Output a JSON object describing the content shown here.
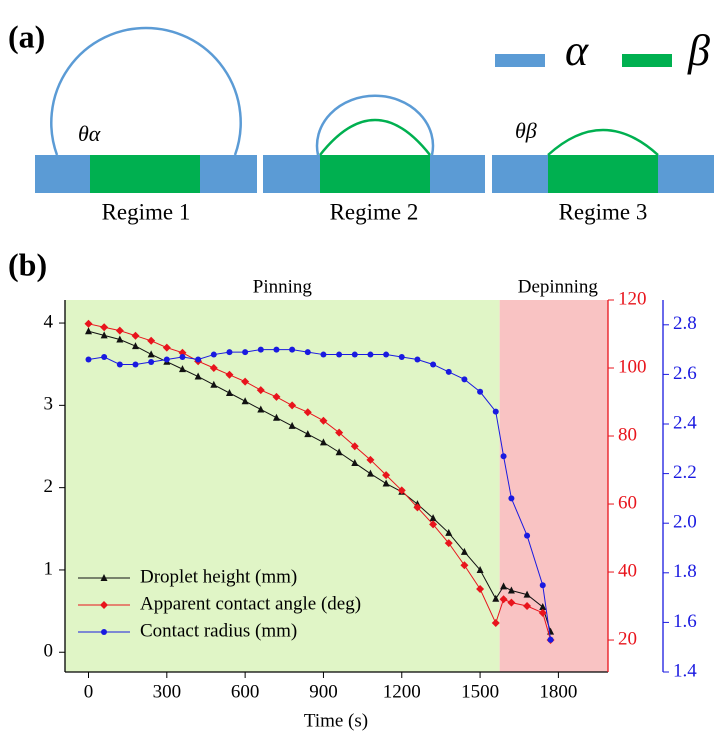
{
  "panel_a": {
    "label": "(a)",
    "legend": [
      "α",
      "β"
    ],
    "angle_labels": [
      "θα",
      "θβ"
    ],
    "regimes": [
      "Regime 1",
      "Regime 2",
      "Regime 3"
    ]
  },
  "chart_data": {
    "type": "line",
    "panel_label": "(b)",
    "x_label": "Time (s)",
    "regions": [
      {
        "label": "Pinning",
        "x0": -90,
        "x1": 1575,
        "color": "#e0f5c6"
      },
      {
        "label": "Depinning",
        "x0": 1575,
        "x1": 1990,
        "color": "#f9c3c3"
      }
    ],
    "x": [
      0,
      60,
      120,
      180,
      240,
      300,
      360,
      420,
      480,
      540,
      600,
      660,
      720,
      780,
      840,
      900,
      960,
      1020,
      1080,
      1140,
      1200,
      1260,
      1320,
      1380,
      1440,
      1500,
      1560,
      1590,
      1620,
      1680,
      1740,
      1770
    ],
    "series": [
      {
        "name": "Droplet height (mm)",
        "color": "#111111",
        "marker": "triangle",
        "axis": "y",
        "values": [
          3.9,
          3.85,
          3.8,
          3.72,
          3.62,
          3.53,
          3.44,
          3.35,
          3.25,
          3.15,
          3.05,
          2.95,
          2.85,
          2.75,
          2.65,
          2.55,
          2.43,
          2.3,
          2.17,
          2.05,
          1.95,
          1.8,
          1.63,
          1.45,
          1.22,
          1.0,
          0.65,
          0.8,
          0.75,
          0.7,
          0.55,
          0.25
        ]
      },
      {
        "name": "Apparent contact angle (deg)",
        "color": "#e8141c",
        "marker": "diamond",
        "axis": "y2",
        "values": [
          113,
          112,
          111,
          109.5,
          108,
          106,
          104.5,
          102,
          100,
          98,
          96,
          93.5,
          91.5,
          89,
          87,
          84.5,
          81,
          77,
          73,
          68.5,
          64,
          59,
          54,
          48.5,
          42,
          35,
          25,
          32,
          31,
          30,
          28,
          20
        ]
      },
      {
        "name": "Contact radius (mm)",
        "color": "#1a1ae0",
        "marker": "circle",
        "axis": "y3",
        "values": [
          2.66,
          2.67,
          2.64,
          2.64,
          2.65,
          2.66,
          2.67,
          2.66,
          2.68,
          2.69,
          2.69,
          2.7,
          2.7,
          2.7,
          2.69,
          2.68,
          2.68,
          2.68,
          2.68,
          2.68,
          2.67,
          2.66,
          2.64,
          2.61,
          2.58,
          2.53,
          2.45,
          2.27,
          2.1,
          1.95,
          1.75,
          1.53
        ]
      }
    ],
    "xlim": [
      -90,
      1990
    ],
    "xticks": [
      0,
      300,
      600,
      900,
      1200,
      1500,
      1800
    ],
    "ylim": [
      -0.24,
      4.28
    ],
    "yticks": [
      0,
      1,
      2,
      3,
      4
    ],
    "y2lim": [
      10.6,
      120
    ],
    "y2ticks": [
      20,
      40,
      60,
      80,
      100,
      120
    ],
    "y2color": "#e8141c",
    "y3lim": [
      1.4,
      2.9
    ],
    "y3ticks": [
      {
        "value": 1.4,
        "label": "1.4"
      },
      {
        "value": 1.6,
        "label": "1.6"
      },
      {
        "value": 1.8,
        "label": "1.8"
      },
      {
        "value": 2.0,
        "label": "2.0"
      },
      {
        "value": 2.2,
        "label": "2.2"
      },
      {
        "value": 2.4,
        "label": "2.4"
      },
      {
        "value": 2.6,
        "label": "2.6"
      },
      {
        "value": 2.8,
        "label": "2.8"
      }
    ],
    "y3color": "#1a1ae0"
  }
}
